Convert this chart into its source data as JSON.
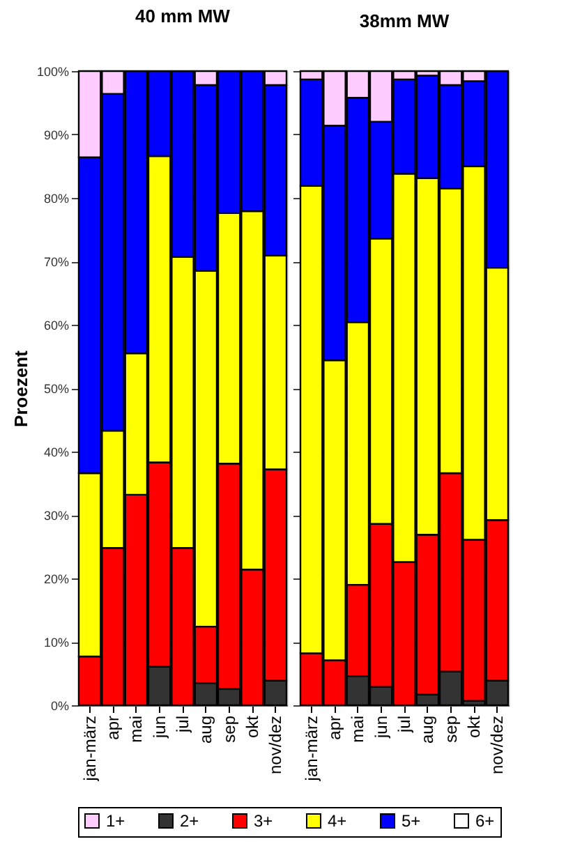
{
  "chart_data": [
    {
      "type": "bar",
      "stacked": true,
      "title": "40 mm MW",
      "ylabel": "Proezent",
      "categories": [
        "jan-märz",
        "apr",
        "mai",
        "jun",
        "jul",
        "aug",
        "sep",
        "okt",
        "nov/dez"
      ],
      "ylim": [
        0,
        100
      ],
      "yticks": [
        {
          "value": 0,
          "label": "0%"
        },
        {
          "value": 10,
          "label": "10%"
        },
        {
          "value": 20,
          "label": "20%"
        },
        {
          "value": 30,
          "label": "30%"
        },
        {
          "value": 40,
          "label": "40%"
        },
        {
          "value": 50,
          "label": "50%"
        },
        {
          "value": 60,
          "label": "60%"
        },
        {
          "value": 70,
          "label": "70%"
        },
        {
          "value": 80,
          "label": "80%"
        },
        {
          "value": 90,
          "label": "90%"
        },
        {
          "value": 100,
          "label": "100%"
        }
      ],
      "grid": "y",
      "legend": "bottom",
      "series": [
        {
          "name": "2+",
          "color": "#333333",
          "values": [
            null,
            null,
            null,
            6.1,
            null,
            3.5,
            2.6,
            null,
            3.9
          ]
        },
        {
          "name": "3+",
          "color": "#ff0000",
          "values": [
            7.7,
            24.8,
            33.2,
            32.2,
            24.8,
            8.9,
            35.5,
            21.4,
            33.3
          ]
        },
        {
          "name": "4+",
          "color": "#ffff00",
          "values": [
            28.9,
            18.5,
            22.3,
            48.3,
            45.9,
            56.1,
            39.5,
            56.5,
            33.7
          ]
        },
        {
          "name": "5+",
          "color": "#0000ff",
          "values": [
            49.8,
            53.1,
            44.5,
            13.4,
            29.3,
            29.3,
            22.4,
            22.1,
            26.9
          ]
        },
        {
          "name": "1+",
          "color": "#ffccff",
          "values": [
            13.6,
            3.6,
            null,
            null,
            null,
            2.2,
            null,
            null,
            2.2
          ]
        },
        {
          "name": "6+",
          "color": "#ffffff",
          "values": [
            null,
            null,
            null,
            null,
            null,
            null,
            null,
            null,
            null
          ]
        }
      ]
    },
    {
      "type": "bar",
      "stacked": true,
      "title": "38mm MW",
      "categories": [
        "jan-märz",
        "apr",
        "mai",
        "jun",
        "jul",
        "aug",
        "sep",
        "okt",
        "nov/dez"
      ],
      "ylim": [
        0,
        100
      ],
      "yticks": [
        {
          "value": 0,
          "label": null
        },
        {
          "value": 10,
          "label": null
        },
        {
          "value": 20,
          "label": null
        },
        {
          "value": 30,
          "label": null
        },
        {
          "value": 40,
          "label": null
        },
        {
          "value": 50,
          "label": null
        },
        {
          "value": 60,
          "label": null
        },
        {
          "value": 70,
          "label": null
        },
        {
          "value": 80,
          "label": null
        },
        {
          "value": 90,
          "label": null
        },
        {
          "value": 100,
          "label": null
        }
      ],
      "grid": "y",
      "legend": "bottom",
      "tick_labels": "x",
      "series": [
        {
          "name": "2+",
          "color": "#333333",
          "values": [
            null,
            null,
            4.6,
            2.9,
            null,
            1.7,
            5.3,
            0.7,
            3.9
          ]
        },
        {
          "name": "3+",
          "color": "#ff0000",
          "values": [
            8.2,
            7.1,
            14.4,
            25.7,
            22.6,
            25.2,
            31.3,
            25.4,
            25.3
          ]
        },
        {
          "name": "4+",
          "color": "#ffff00",
          "values": [
            73.7,
            47.3,
            41.4,
            45.0,
            61.2,
            56.2,
            44.9,
            58.9,
            39.8
          ]
        },
        {
          "name": "5+",
          "color": "#0000ff",
          "values": [
            16.8,
            37.0,
            35.4,
            18.4,
            14.9,
            16.2,
            16.3,
            13.4,
            31.0
          ]
        },
        {
          "name": "1+",
          "color": "#ffccff",
          "values": [
            1.3,
            8.6,
            4.2,
            8.0,
            1.3,
            0.7,
            2.2,
            1.6,
            null
          ]
        }
      ]
    }
  ]
}
